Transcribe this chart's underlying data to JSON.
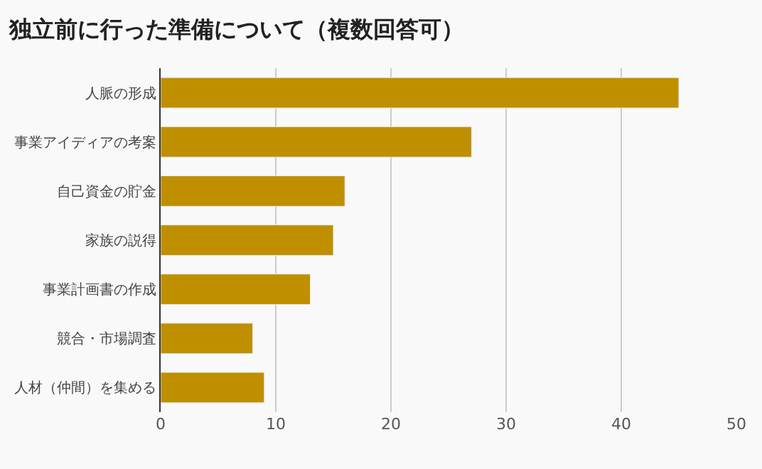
{
  "chart_data": {
    "type": "bar",
    "orientation": "horizontal",
    "title": "独立前に行った準備について（複数回答可）",
    "categories": [
      "人脈の形成",
      "事業アイディアの考案",
      "自己資金の貯金",
      "家族の説得",
      "事業計画書の作成",
      "競合・市場調査",
      "人材（仲間）を集める"
    ],
    "values": [
      45,
      27,
      16,
      15,
      13,
      8,
      9
    ],
    "color": "#bf8f00",
    "xlim": [
      0,
      50
    ],
    "xticks": [
      0,
      10,
      20,
      30,
      40,
      50
    ],
    "grid": "x",
    "legend": false
  }
}
